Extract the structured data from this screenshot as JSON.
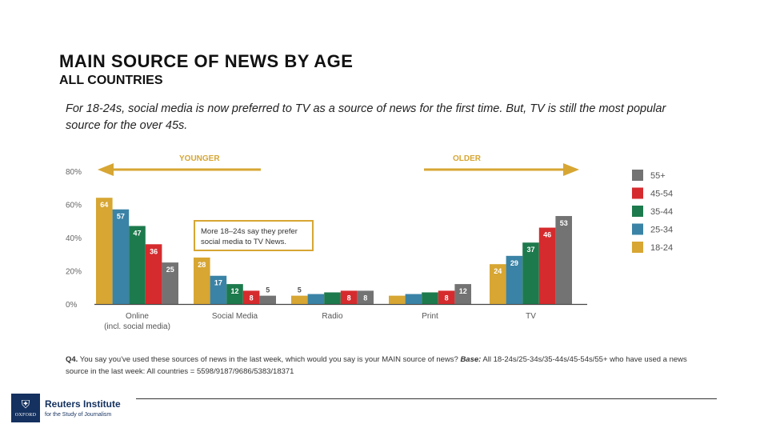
{
  "header": {
    "title": "MAIN SOURCE OF NEWS BY AGE",
    "subtitle": "ALL COUNTRIES",
    "description": "For 18-24s, social media is now preferred to TV as a source of news for the first time. But, TV is still the most popular source for the over 45s."
  },
  "arrows": {
    "younger": "YOUNGER",
    "older": "OLDER"
  },
  "annotation": {
    "line1": "More 18–24s say they prefer",
    "line2": "social media to TV News."
  },
  "chart_data": {
    "type": "bar",
    "categories": [
      [
        "Online",
        "(incl. social media)"
      ],
      [
        "Social Media"
      ],
      [
        "Radio"
      ],
      [
        "Print"
      ],
      [
        "TV"
      ]
    ],
    "series": [
      {
        "name": "18-24",
        "color": "#d7a633",
        "values": [
          64,
          28,
          5,
          5,
          24
        ]
      },
      {
        "name": "25-34",
        "color": "#3a83a6",
        "values": [
          57,
          17,
          6,
          6,
          29
        ]
      },
      {
        "name": "35-44",
        "color": "#1d7a4c",
        "values": [
          47,
          12,
          7,
          7,
          37
        ]
      },
      {
        "name": "45-54",
        "color": "#d52b2e",
        "values": [
          36,
          8,
          8,
          8,
          46
        ]
      },
      {
        "name": "55+",
        "color": "#737373",
        "values": [
          25,
          5,
          8,
          12,
          53
        ]
      }
    ],
    "ylim": [
      0,
      80
    ],
    "yticks": [
      "0%",
      "20%",
      "40%",
      "60%",
      "80%"
    ],
    "legend_order": [
      "55+",
      "45-54",
      "35-44",
      "25-34",
      "18-24"
    ],
    "legend_position": "right",
    "grid": false
  },
  "footnote": {
    "question": "Q4.",
    "text": " You say you've used these sources of news in the last week, which would you say is your MAIN source of news? ",
    "base_label": "Base:",
    "base_text": " All 18-24s/25-34s/35-44s/45-54s/55+ who have used a news source in the last week: All countries = 5598/9187/9686/5383/18371"
  },
  "logo": {
    "name": "Reuters Institute",
    "tagline": "for the Study of Journalism",
    "crest_text": "OXFORD"
  }
}
